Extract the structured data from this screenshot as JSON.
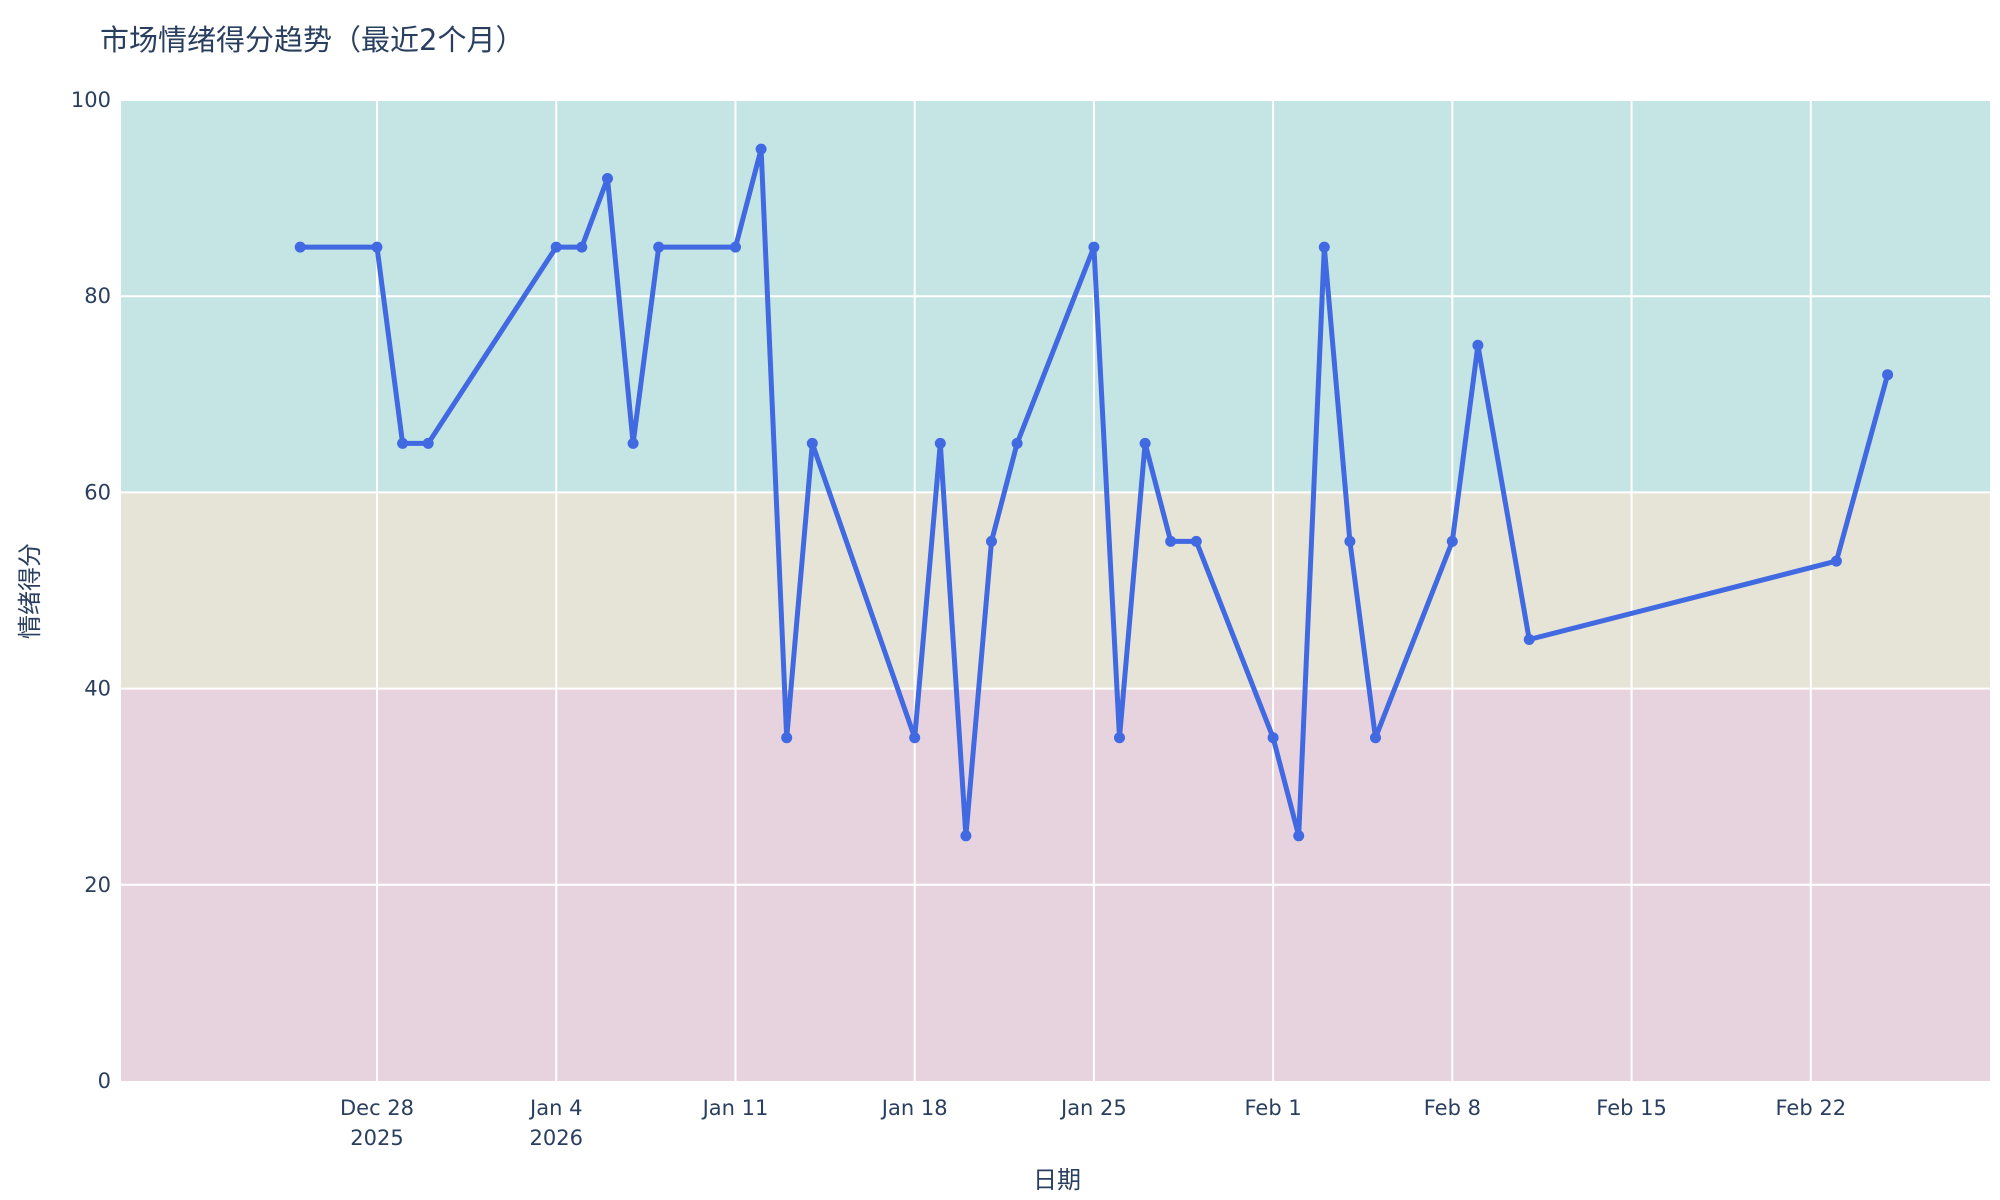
{
  "chart_data": {
    "type": "line",
    "title": "市场情绪得分趋势（最近2个月）",
    "xlabel": "日期",
    "ylabel": "情绪得分",
    "ylim": [
      0,
      100
    ],
    "xlim": [
      "2025-12-18",
      "2026-03-01"
    ],
    "y_ticks": [
      0,
      20,
      40,
      60,
      80,
      100
    ],
    "x_ticks": [
      {
        "date": "2025-12-28",
        "label": "Dec 28",
        "sublabel": "2025"
      },
      {
        "date": "2026-01-04",
        "label": "Jan 4",
        "sublabel": "2026"
      },
      {
        "date": "2026-01-11",
        "label": "Jan 11",
        "sublabel": ""
      },
      {
        "date": "2026-01-18",
        "label": "Jan 18",
        "sublabel": ""
      },
      {
        "date": "2026-01-25",
        "label": "Jan 25",
        "sublabel": ""
      },
      {
        "date": "2026-02-01",
        "label": "Feb 1",
        "sublabel": ""
      },
      {
        "date": "2026-02-08",
        "label": "Feb 8",
        "sublabel": ""
      },
      {
        "date": "2026-02-15",
        "label": "Feb 15",
        "sublabel": ""
      },
      {
        "date": "2026-02-22",
        "label": "Feb 22",
        "sublabel": ""
      }
    ],
    "bands": [
      {
        "from": 60,
        "to": 100,
        "color": "#c5e4e4"
      },
      {
        "from": 40,
        "to": 60,
        "color": "#e6e4d7"
      },
      {
        "from": 0,
        "to": 40,
        "color": "#e6d3de"
      }
    ],
    "grid": true,
    "line_color": "#4169e1",
    "series": [
      {
        "x": [
          "2025-12-25",
          "2025-12-28",
          "2025-12-29",
          "2025-12-30",
          "2026-01-04",
          "2026-01-05",
          "2026-01-06",
          "2026-01-07",
          "2026-01-08",
          "2026-01-11",
          "2026-01-12",
          "2026-01-13",
          "2026-01-14",
          "2026-01-18",
          "2026-01-19",
          "2026-01-20",
          "2026-01-21",
          "2026-01-22",
          "2026-01-25",
          "2026-01-26",
          "2026-01-27",
          "2026-01-28",
          "2026-01-29",
          "2026-02-01",
          "2026-02-02",
          "2026-02-03",
          "2026-02-04",
          "2026-02-05",
          "2026-02-08",
          "2026-02-09",
          "2026-02-11",
          "2026-02-23",
          "2026-02-25"
        ],
        "y": [
          85,
          85,
          65,
          65,
          85,
          85,
          92,
          65,
          85,
          85,
          95,
          35,
          65,
          35,
          65,
          25,
          55,
          65,
          85,
          35,
          65,
          55,
          55,
          35,
          25,
          85,
          55,
          35,
          55,
          75,
          45,
          53,
          72
        ]
      }
    ]
  }
}
